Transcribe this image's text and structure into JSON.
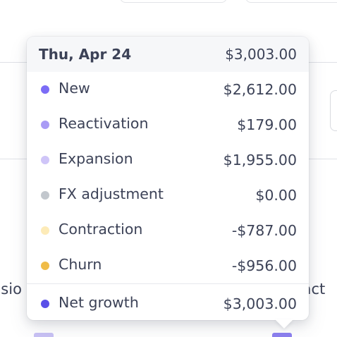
{
  "tooltip": {
    "date": "Thu, Apr 24",
    "total": "$3,003.00",
    "rows": [
      {
        "label": "New",
        "value": "$2,612.00",
        "color": "#7b6cf6"
      },
      {
        "label": "Reactivation",
        "value": "$179.00",
        "color": "#a99bf5"
      },
      {
        "label": "Expansion",
        "value": "$1,955.00",
        "color": "#cfc5f8"
      },
      {
        "label": "FX adjustment",
        "value": "$0.00",
        "color": "#c2c7cd"
      },
      {
        "label": "Contraction",
        "value": "-$787.00",
        "color": "#fdebb8"
      },
      {
        "label": "Churn",
        "value": "-$956.00",
        "color": "#f0bc48"
      }
    ],
    "net": {
      "label": "Net growth",
      "value": "$3,003.00",
      "color": "#5a4fe8"
    }
  },
  "background": {
    "left_text": "nsio",
    "right_text": "ract",
    "swatch_colors": [
      "#a99bf5",
      "#7b6cf6"
    ]
  }
}
